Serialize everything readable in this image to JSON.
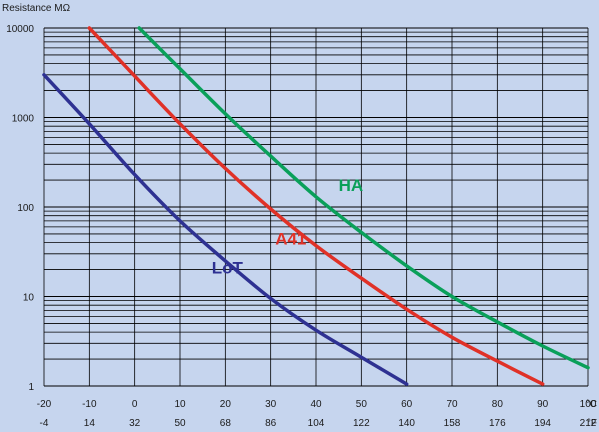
{
  "colors": {
    "background": "#c6d5ee",
    "grid": "#000000",
    "text": "#1a1a1a"
  },
  "chart_data": {
    "type": "line",
    "title": "",
    "ylabel": "Resistance MΩ",
    "y_scale": "log",
    "ylim": [
      1,
      10000
    ],
    "xlim": [
      -20,
      100
    ],
    "grid": true,
    "x_ticks_celsius": [
      -20,
      -10,
      0,
      10,
      20,
      30,
      40,
      50,
      60,
      70,
      80,
      90,
      100
    ],
    "x_unit_celsius": "°C",
    "x_ticks_fahrenheit": [
      -4,
      14,
      32,
      50,
      68,
      86,
      104,
      122,
      140,
      158,
      176,
      194,
      212
    ],
    "x_unit_fahrenheit": "°F",
    "y_ticks": [
      {
        "value": 1,
        "label": "1"
      },
      {
        "value": 10,
        "label": "10"
      },
      {
        "value": 100,
        "label": "100"
      },
      {
        "value": 1000,
        "label": "1000"
      },
      {
        "value": 10000,
        "label": "10000"
      }
    ],
    "series": [
      {
        "name": "LoT",
        "color": "#2e3192",
        "label_at": [
          17,
          18
        ],
        "points": [
          [
            -20,
            3000
          ],
          [
            -10,
            850
          ],
          [
            0,
            230
          ],
          [
            10,
            70
          ],
          [
            20,
            25
          ],
          [
            30,
            9.5
          ],
          [
            40,
            4.2
          ],
          [
            50,
            2.1
          ],
          [
            60,
            1.05
          ]
        ]
      },
      {
        "name": "A41",
        "color": "#e03127",
        "label_at": [
          31,
          38
        ],
        "points": [
          [
            -10,
            10000
          ],
          [
            0,
            2900
          ],
          [
            10,
            850
          ],
          [
            20,
            270
          ],
          [
            30,
            95
          ],
          [
            40,
            37
          ],
          [
            50,
            16
          ],
          [
            60,
            7.2
          ],
          [
            70,
            3.5
          ],
          [
            80,
            1.9
          ],
          [
            90,
            1.05
          ]
        ]
      },
      {
        "name": "HA",
        "color": "#0aa05a",
        "label_at": [
          45,
          150
        ],
        "points": [
          [
            1,
            10000
          ],
          [
            10,
            3500
          ],
          [
            20,
            1100
          ],
          [
            30,
            370
          ],
          [
            40,
            130
          ],
          [
            50,
            52
          ],
          [
            60,
            22
          ],
          [
            70,
            10
          ],
          [
            80,
            5.2
          ],
          [
            90,
            2.8
          ],
          [
            100,
            1.6
          ]
        ]
      }
    ]
  }
}
